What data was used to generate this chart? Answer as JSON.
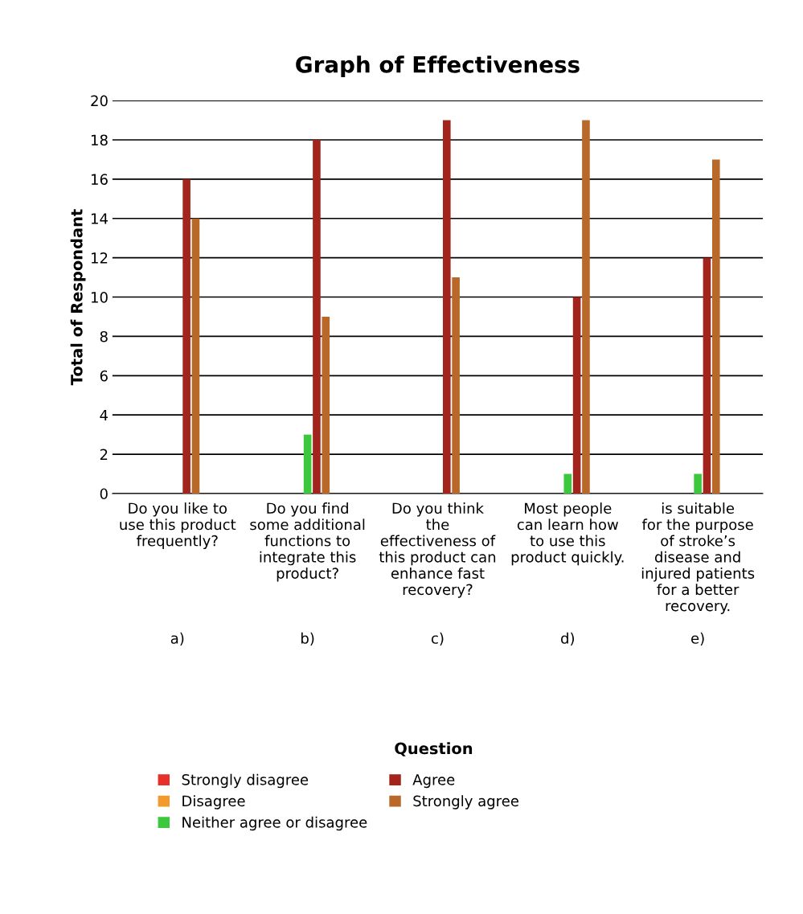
{
  "chart_data": {
    "type": "bar",
    "title": "Graph of Effectiveness",
    "annotations": [
      "Question"
    ],
    "ylabel": "Total of Respondant",
    "categories": [
      "Do you like to\nuse this product\nfrequently?\n\n\n\n\n\na)",
      "Do you find\nsome additional\nfunctions to\nintegrate this\nproduct?\n\n\n\nb)",
      "Do you think\nthe\neffectiveness of\nthis product can\nenhance fast\nrecovery?\n\n\nc)",
      "Most people\ncan learn how\nto use this\nproduct quickly.\n\n\n\n\nd)",
      "is suitable\nfor the purpose\nof stroke’s\ndisease and\ninjured patients\nfor a better\nrecovery.\n\ne)"
    ],
    "series": [
      {
        "name": "Strongly disagree",
        "color": "#e8302a",
        "values": [
          0,
          0,
          0,
          0,
          0
        ]
      },
      {
        "name": "Disagree",
        "color": "#f29a2e",
        "values": [
          0,
          0,
          0,
          0,
          0
        ]
      },
      {
        "name": "Neither agree or disagree",
        "color": "#3cc83c",
        "values": [
          0,
          3,
          0,
          1,
          1
        ]
      },
      {
        "name": "Agree",
        "color": "#a3241c",
        "values": [
          16,
          18,
          19,
          10,
          12
        ]
      },
      {
        "name": "Strongly agree",
        "color": "#b8692a",
        "values": [
          14,
          9,
          11,
          19,
          17
        ]
      }
    ],
    "ylim": [
      0,
      20
    ],
    "yticks": [
      0,
      2,
      4,
      6,
      8,
      10,
      12,
      14,
      16,
      18,
      20
    ],
    "grid": "y",
    "legend": "bottom"
  }
}
